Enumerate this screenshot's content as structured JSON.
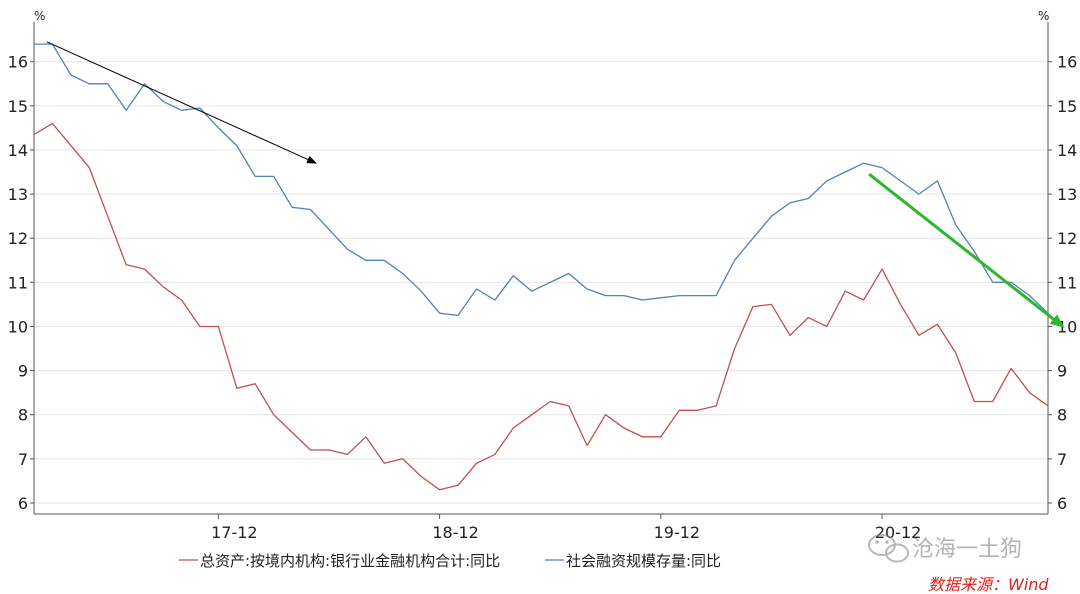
{
  "chart_data": {
    "type": "line",
    "y_unit_left": "%",
    "y_unit_right": "%",
    "ylim": [
      5.75,
      16.9
    ],
    "yticks": [
      6,
      7,
      8,
      9,
      10,
      11,
      12,
      13,
      14,
      15,
      16
    ],
    "x_tick_labels": [
      "17-12",
      "18-12",
      "19-12",
      "20-12"
    ],
    "x_tick_positions": [
      10,
      22,
      34,
      46
    ],
    "x_count": 56,
    "grid": "horizontal",
    "legend_position": "bottom",
    "series": [
      {
        "name": "总资产:按境内机构:银行业金融机构合计:同比",
        "color": "#c0504d",
        "values": [
          14.35,
          14.6,
          14.1,
          13.6,
          12.5,
          11.4,
          11.3,
          10.9,
          10.6,
          10.0,
          10.0,
          8.6,
          8.7,
          8.0,
          7.6,
          7.2,
          7.2,
          7.1,
          7.5,
          6.9,
          7.0,
          6.6,
          6.3,
          6.4,
          6.9,
          7.1,
          7.7,
          8.0,
          8.3,
          8.2,
          7.3,
          8.0,
          7.7,
          7.5,
          7.5,
          8.1,
          8.1,
          8.2,
          9.5,
          10.45,
          10.5,
          9.8,
          10.2,
          10.0,
          10.8,
          10.6,
          11.3,
          10.5,
          9.8,
          10.05,
          9.4,
          8.3,
          8.3,
          9.05,
          8.5,
          8.2
        ]
      },
      {
        "name": "社会融资规模存量:同比",
        "color": "#4f81bd",
        "values": [
          16.4,
          16.4,
          15.7,
          15.5,
          15.5,
          14.9,
          15.5,
          15.1,
          14.9,
          14.95,
          14.5,
          14.1,
          13.4,
          13.4,
          12.7,
          12.65,
          12.2,
          11.75,
          11.5,
          11.5,
          11.2,
          10.8,
          10.3,
          10.25,
          10.85,
          10.6,
          11.15,
          10.8,
          11.0,
          11.2,
          10.85,
          10.7,
          10.7,
          10.6,
          10.65,
          10.7,
          10.7,
          10.7,
          11.5,
          12.0,
          12.5,
          12.8,
          12.9,
          13.3,
          13.5,
          13.7,
          13.6,
          13.3,
          13.0,
          13.3,
          12.3,
          11.7,
          11.0,
          11.0,
          10.7,
          10.3
        ]
      }
    ],
    "annotations": [
      {
        "kind": "arrow",
        "color": "#000000",
        "from": {
          "x": 0.7,
          "y": 16.45
        },
        "to": {
          "x": 15.3,
          "y": 13.7
        }
      },
      {
        "kind": "arrow",
        "color": "#2fb52f",
        "from": {
          "x": 45.3,
          "y": 13.45
        },
        "to": {
          "x": 55.8,
          "y": 10.0
        }
      }
    ]
  },
  "legend": {
    "item_1": "总资产:按境内机构:银行业金融机构合计:同比",
    "item_2": "社会融资规模存量:同比"
  },
  "source_note": "数据来源：Wind",
  "watermark": "沧海一土狗",
  "unit_left": "%",
  "unit_right": "%"
}
